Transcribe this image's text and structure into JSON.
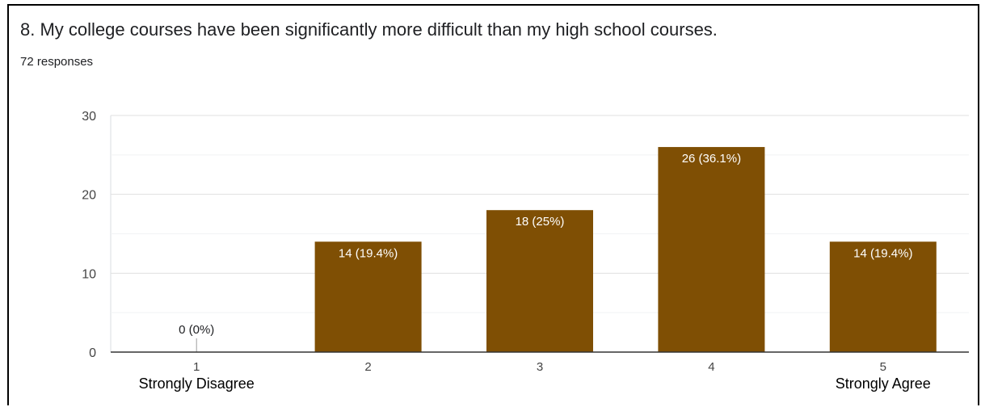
{
  "question": {
    "title": "8. My college courses have been significantly more difficult than my high school courses.",
    "responses": "72 responses"
  },
  "chart_data": {
    "type": "bar",
    "categories": [
      "1",
      "2",
      "3",
      "4",
      "5"
    ],
    "category_sublabels": [
      "Strongly Disagree",
      "",
      "",
      "",
      "Strongly Agree"
    ],
    "values": [
      0,
      14,
      18,
      26,
      14
    ],
    "data_labels": [
      "0 (0%)",
      "14 (19.4%)",
      "18 (25%)",
      "26 (36.1%)",
      "14 (19.4%)"
    ],
    "ylim": [
      0,
      30
    ],
    "yticks": [
      0,
      10,
      20,
      30
    ],
    "minor_grid": [
      5,
      15,
      25
    ],
    "grid": true,
    "bar_color": "#7f4f04",
    "label_color_inside": "#ffffff",
    "label_color_outside": "#202124",
    "title": "",
    "xlabel": "",
    "ylabel": ""
  }
}
